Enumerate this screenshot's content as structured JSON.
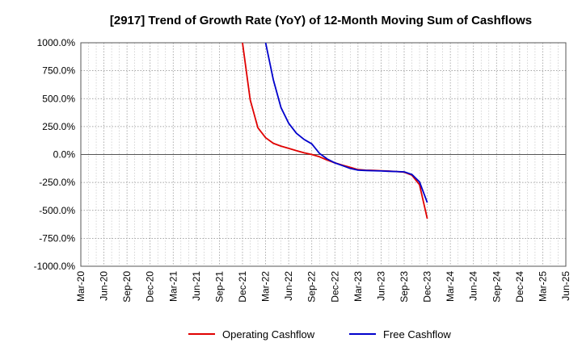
{
  "chart_data": {
    "type": "line",
    "title": "[2917]  Trend of Growth Rate (YoY) of 12-Month Moving Sum of Cashflows",
    "xlabel": "",
    "ylabel": "",
    "ylim": [
      -1000,
      1000
    ],
    "y_ticks": [
      1000,
      750,
      500,
      250,
      0,
      -250,
      -500,
      -750,
      -1000
    ],
    "y_tick_labels": [
      "1000.0%",
      "750.0%",
      "500.0%",
      "250.0%",
      "0.0%",
      "-250.0%",
      "-500.0%",
      "-750.0%",
      "-1000.0%"
    ],
    "x_tick_labels": [
      "Mar-20",
      "Jun-20",
      "Sep-20",
      "Dec-20",
      "Mar-21",
      "Jun-21",
      "Sep-21",
      "Dec-21",
      "Mar-22",
      "Jun-22",
      "Sep-22",
      "Dec-22",
      "Mar-23",
      "Jun-23",
      "Sep-23",
      "Dec-23",
      "Mar-24",
      "Jun-24",
      "Sep-24",
      "Dec-24",
      "Mar-25",
      "Jun-25"
    ],
    "grid": true,
    "legend_position": "bottom",
    "series": [
      {
        "name": "Operating Cashflow",
        "color": "#e00000",
        "points": [
          [
            "Dec-21",
            1000
          ],
          [
            "Jan-22",
            490
          ],
          [
            "Feb-22",
            240
          ],
          [
            "Mar-22",
            150
          ],
          [
            "Apr-22",
            100
          ],
          [
            "May-22",
            75
          ],
          [
            "Jun-22",
            55
          ],
          [
            "Jul-22",
            35
          ],
          [
            "Aug-22",
            15
          ],
          [
            "Sep-22",
            0
          ],
          [
            "Oct-22",
            -20
          ],
          [
            "Nov-22",
            -50
          ],
          [
            "Dec-22",
            -75
          ],
          [
            "Jan-23",
            -95
          ],
          [
            "Feb-23",
            -115
          ],
          [
            "Mar-23",
            -135
          ],
          [
            "Apr-23",
            -140
          ],
          [
            "May-23",
            -142
          ],
          [
            "Jun-23",
            -145
          ],
          [
            "Jul-23",
            -148
          ],
          [
            "Aug-23",
            -152
          ],
          [
            "Sep-23",
            -158
          ],
          [
            "Oct-23",
            -185
          ],
          [
            "Nov-23",
            -270
          ],
          [
            "Dec-23",
            -575
          ]
        ]
      },
      {
        "name": "Free Cashflow",
        "color": "#0000cc",
        "points": [
          [
            "Mar-22",
            1000
          ],
          [
            "Apr-22",
            670
          ],
          [
            "May-22",
            420
          ],
          [
            "Jun-22",
            280
          ],
          [
            "Jul-22",
            190
          ],
          [
            "Aug-22",
            135
          ],
          [
            "Sep-22",
            95
          ],
          [
            "Oct-22",
            10
          ],
          [
            "Nov-22",
            -40
          ],
          [
            "Dec-22",
            -75
          ],
          [
            "Jan-23",
            -100
          ],
          [
            "Feb-23",
            -125
          ],
          [
            "Mar-23",
            -140
          ],
          [
            "Apr-23",
            -143
          ],
          [
            "May-23",
            -145
          ],
          [
            "Jun-23",
            -147
          ],
          [
            "Jul-23",
            -150
          ],
          [
            "Aug-23",
            -152
          ],
          [
            "Sep-23",
            -155
          ],
          [
            "Oct-23",
            -178
          ],
          [
            "Nov-23",
            -245
          ],
          [
            "Dec-23",
            -430
          ]
        ]
      }
    ]
  }
}
